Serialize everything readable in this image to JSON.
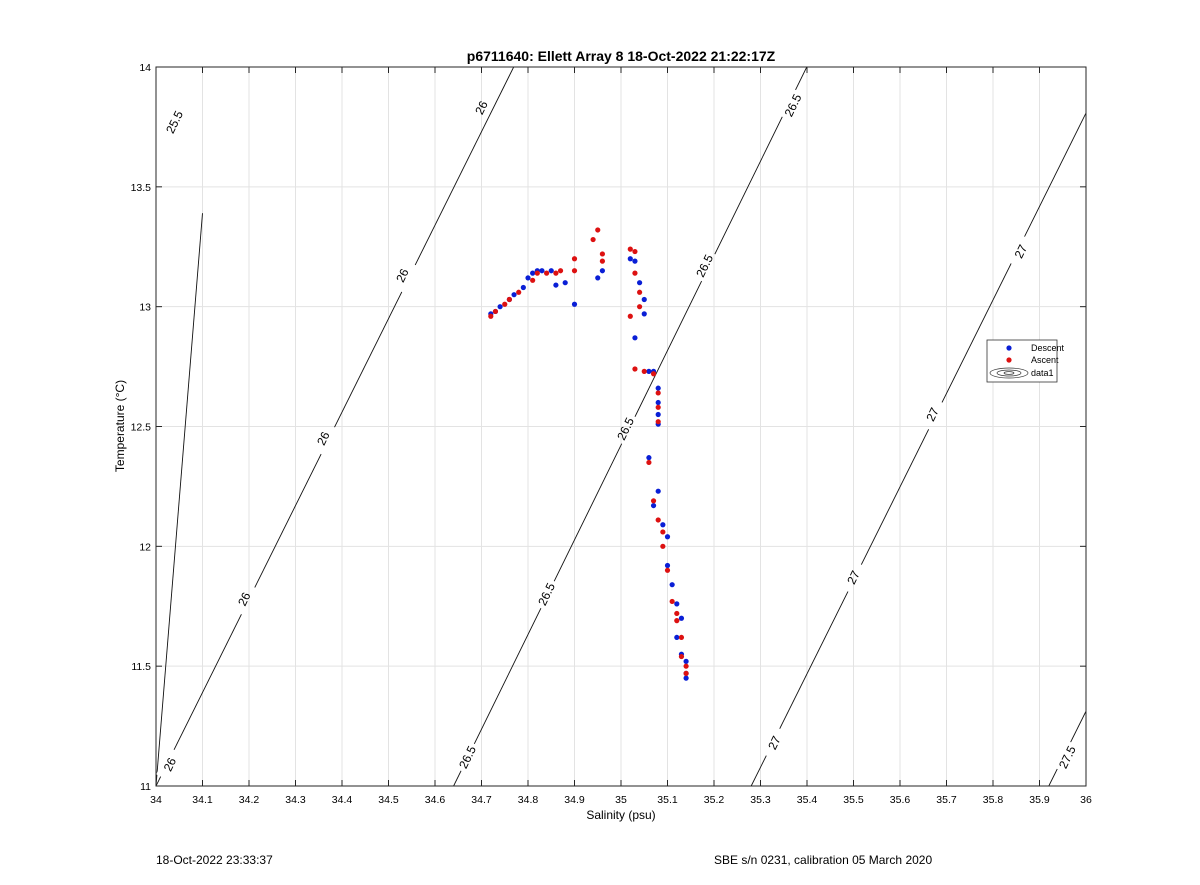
{
  "chart_data": {
    "type": "scatter",
    "title": "p6711640: Ellett Array 8 18-Oct-2022 21:22:17Z",
    "xlabel": "Salinity (psu)",
    "ylabel": "Temperature (°C)",
    "xlim": [
      34,
      36
    ],
    "ylim": [
      11,
      14
    ],
    "xticks": [
      "34",
      "34.1",
      "34.2",
      "34.3",
      "34.4",
      "34.5",
      "34.6",
      "34.7",
      "34.8",
      "34.9",
      "35",
      "35.1",
      "35.2",
      "35.3",
      "35.4",
      "35.5",
      "35.6",
      "35.7",
      "35.8",
      "35.9",
      "36"
    ],
    "yticks": [
      "11",
      "11.5",
      "12",
      "12.5",
      "13",
      "13.5",
      "14"
    ],
    "grid": true,
    "legend_position": "right",
    "legend": [
      {
        "label": "Descent",
        "color": "#0a1fd6",
        "marker": "dot"
      },
      {
        "label": "Ascent",
        "color": "#dd1111",
        "marker": "dot"
      },
      {
        "label": "data1",
        "marker": "contour-ellipse"
      }
    ],
    "contours": [
      {
        "level": "25.5",
        "x0": 34.0,
        "x1": 34.1,
        "slope": 23.9
      },
      {
        "level": "26",
        "x0": 34.0,
        "x1": 34.8,
        "slope": 3.9
      },
      {
        "level": "26.5",
        "x0": 34.64,
        "x1": 35.4,
        "slope": 3.95
      },
      {
        "level": "27",
        "x0": 35.28,
        "x1": 36.0,
        "slope": 3.9
      },
      {
        "level": "27.5",
        "x0": 35.92,
        "x1": 36.0,
        "slope": 3.9
      }
    ],
    "contour_labels": [
      {
        "text": "25.5",
        "x": 34.04,
        "y": 13.77
      },
      {
        "text": "26",
        "x": 34.7,
        "y": 13.83
      },
      {
        "text": "26",
        "x": 34.53,
        "y": 13.13
      },
      {
        "text": "26",
        "x": 34.36,
        "y": 12.45
      },
      {
        "text": "26",
        "x": 34.19,
        "y": 11.78
      },
      {
        "text": "26",
        "x": 34.03,
        "y": 11.09
      },
      {
        "text": "26.5",
        "x": 35.37,
        "y": 13.84
      },
      {
        "text": "26.5",
        "x": 35.18,
        "y": 13.17
      },
      {
        "text": "26.5",
        "x": 35.01,
        "y": 12.49
      },
      {
        "text": "26.5",
        "x": 34.84,
        "y": 11.8
      },
      {
        "text": "26.5",
        "x": 34.67,
        "y": 11.12
      },
      {
        "text": "27",
        "x": 35.86,
        "y": 13.23
      },
      {
        "text": "27",
        "x": 35.67,
        "y": 12.55
      },
      {
        "text": "27",
        "x": 35.5,
        "y": 11.87
      },
      {
        "text": "27",
        "x": 35.33,
        "y": 11.18
      },
      {
        "text": "27.5",
        "x": 35.96,
        "y": 11.12
      }
    ],
    "series": [
      {
        "name": "Descent",
        "color": "#0a1fd6",
        "points": [
          [
            34.72,
            12.97
          ],
          [
            34.73,
            12.98
          ],
          [
            34.74,
            13.0
          ],
          [
            34.76,
            13.03
          ],
          [
            34.77,
            13.05
          ],
          [
            34.79,
            13.08
          ],
          [
            34.8,
            13.12
          ],
          [
            34.81,
            13.14
          ],
          [
            34.82,
            13.15
          ],
          [
            34.83,
            13.15
          ],
          [
            34.85,
            13.15
          ],
          [
            34.86,
            13.09
          ],
          [
            34.88,
            13.1
          ],
          [
            34.9,
            13.01
          ],
          [
            34.95,
            13.12
          ],
          [
            34.96,
            13.15
          ],
          [
            35.02,
            13.2
          ],
          [
            35.03,
            13.19
          ],
          [
            35.04,
            13.1
          ],
          [
            35.05,
            13.03
          ],
          [
            35.05,
            12.97
          ],
          [
            35.03,
            12.87
          ],
          [
            35.06,
            12.73
          ],
          [
            35.07,
            12.73
          ],
          [
            35.08,
            12.66
          ],
          [
            35.08,
            12.6
          ],
          [
            35.08,
            12.55
          ],
          [
            35.08,
            12.51
          ],
          [
            35.06,
            12.37
          ],
          [
            35.08,
            12.23
          ],
          [
            35.07,
            12.17
          ],
          [
            35.09,
            12.09
          ],
          [
            35.1,
            12.04
          ],
          [
            35.1,
            11.92
          ],
          [
            35.11,
            11.84
          ],
          [
            35.12,
            11.76
          ],
          [
            35.13,
            11.7
          ],
          [
            35.12,
            11.62
          ],
          [
            35.13,
            11.55
          ],
          [
            35.14,
            11.52
          ],
          [
            35.14,
            11.47
          ],
          [
            35.14,
            11.45
          ]
        ]
      },
      {
        "name": "Ascent",
        "color": "#dd1111",
        "points": [
          [
            34.72,
            12.96
          ],
          [
            34.73,
            12.98
          ],
          [
            34.75,
            13.01
          ],
          [
            34.76,
            13.03
          ],
          [
            34.78,
            13.06
          ],
          [
            34.81,
            13.11
          ],
          [
            34.82,
            13.14
          ],
          [
            34.84,
            13.14
          ],
          [
            34.86,
            13.14
          ],
          [
            34.87,
            13.15
          ],
          [
            34.9,
            13.15
          ],
          [
            34.9,
            13.2
          ],
          [
            34.94,
            13.28
          ],
          [
            34.95,
            13.32
          ],
          [
            34.96,
            13.22
          ],
          [
            34.96,
            13.19
          ],
          [
            35.02,
            13.24
          ],
          [
            35.03,
            13.23
          ],
          [
            35.03,
            13.14
          ],
          [
            35.04,
            13.06
          ],
          [
            35.04,
            13.0
          ],
          [
            35.02,
            12.96
          ],
          [
            35.03,
            12.74
          ],
          [
            35.05,
            12.73
          ],
          [
            35.07,
            12.72
          ],
          [
            35.08,
            12.64
          ],
          [
            35.08,
            12.58
          ],
          [
            35.08,
            12.52
          ],
          [
            35.06,
            12.35
          ],
          [
            35.07,
            12.19
          ],
          [
            35.08,
            12.11
          ],
          [
            35.09,
            12.06
          ],
          [
            35.09,
            12.0
          ],
          [
            35.1,
            11.9
          ],
          [
            35.11,
            11.77
          ],
          [
            35.12,
            11.72
          ],
          [
            35.12,
            11.69
          ],
          [
            35.13,
            11.62
          ],
          [
            35.13,
            11.54
          ],
          [
            35.14,
            11.5
          ],
          [
            35.14,
            11.47
          ]
        ]
      }
    ]
  },
  "footer": {
    "left": "18-Oct-2022 23:33:37",
    "right": "SBE s/n 0231, calibration 05 March 2020"
  }
}
